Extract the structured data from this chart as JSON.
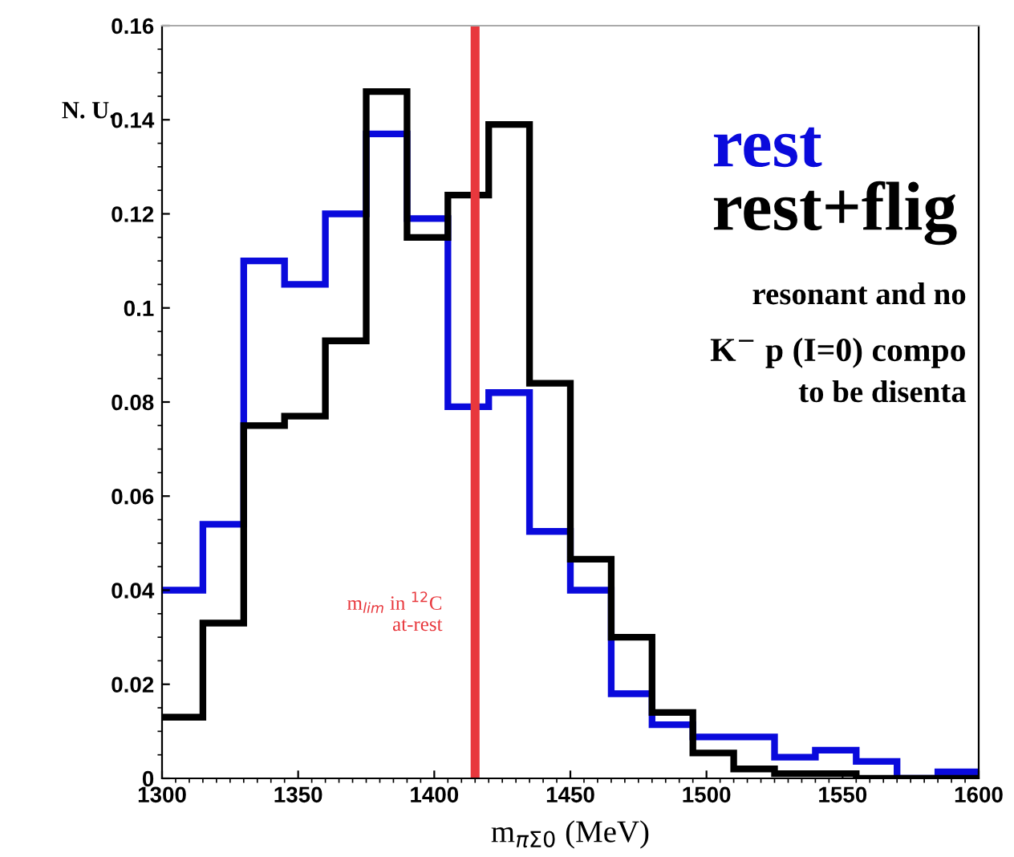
{
  "chart_data": {
    "type": "histogram",
    "xlabel": "m$_{πΣ0}$ (MeV)",
    "ylabel": "N. U.",
    "bins": [
      1300,
      1315,
      1330,
      1345,
      1360,
      1375,
      1390,
      1405,
      1420,
      1435,
      1450,
      1465,
      1480,
      1495,
      1510,
      1525,
      1540,
      1555,
      1570,
      1585,
      1600
    ],
    "series": [
      {
        "name": "rest",
        "color": "#0a0adc",
        "values": [
          0.04,
          0.054,
          0.11,
          0.105,
          0.12,
          0.137,
          0.119,
          0.079,
          0.082,
          0.0525,
          0.04,
          0.018,
          0.0114,
          0.0088,
          0.0088,
          0.0045,
          0.006,
          0.0036,
          0,
          0.0014
        ]
      },
      {
        "name": "rest+flig",
        "color": "#000000",
        "values": [
          0.013,
          0.033,
          0.075,
          0.077,
          0.093,
          0.146,
          0.115,
          0.124,
          0.139,
          0.084,
          0.0466,
          0.03,
          0.014,
          0.0054,
          0.002,
          0.001,
          0.001,
          0,
          0,
          0
        ]
      }
    ],
    "xlim": [
      1300,
      1600
    ],
    "xticks": [
      1300,
      1350,
      1400,
      1450,
      1500,
      1550,
      1600
    ],
    "ylim": [
      0,
      0.16
    ],
    "yticks": [
      0,
      0.02,
      0.04,
      0.06,
      0.08,
      0.1,
      0.12,
      0.14,
      0.16
    ],
    "ref_lines": [
      {
        "axis": "x",
        "value": 1415,
        "label": "m$_{lim}$ in $^{12}$C\nat-rest",
        "color": "#e8383d"
      }
    ],
    "annotations": [
      "resonant and no",
      "K$^{−}$ p (I=0) compo",
      "to be disenta"
    ],
    "legend": "top right",
    "grid": false
  }
}
